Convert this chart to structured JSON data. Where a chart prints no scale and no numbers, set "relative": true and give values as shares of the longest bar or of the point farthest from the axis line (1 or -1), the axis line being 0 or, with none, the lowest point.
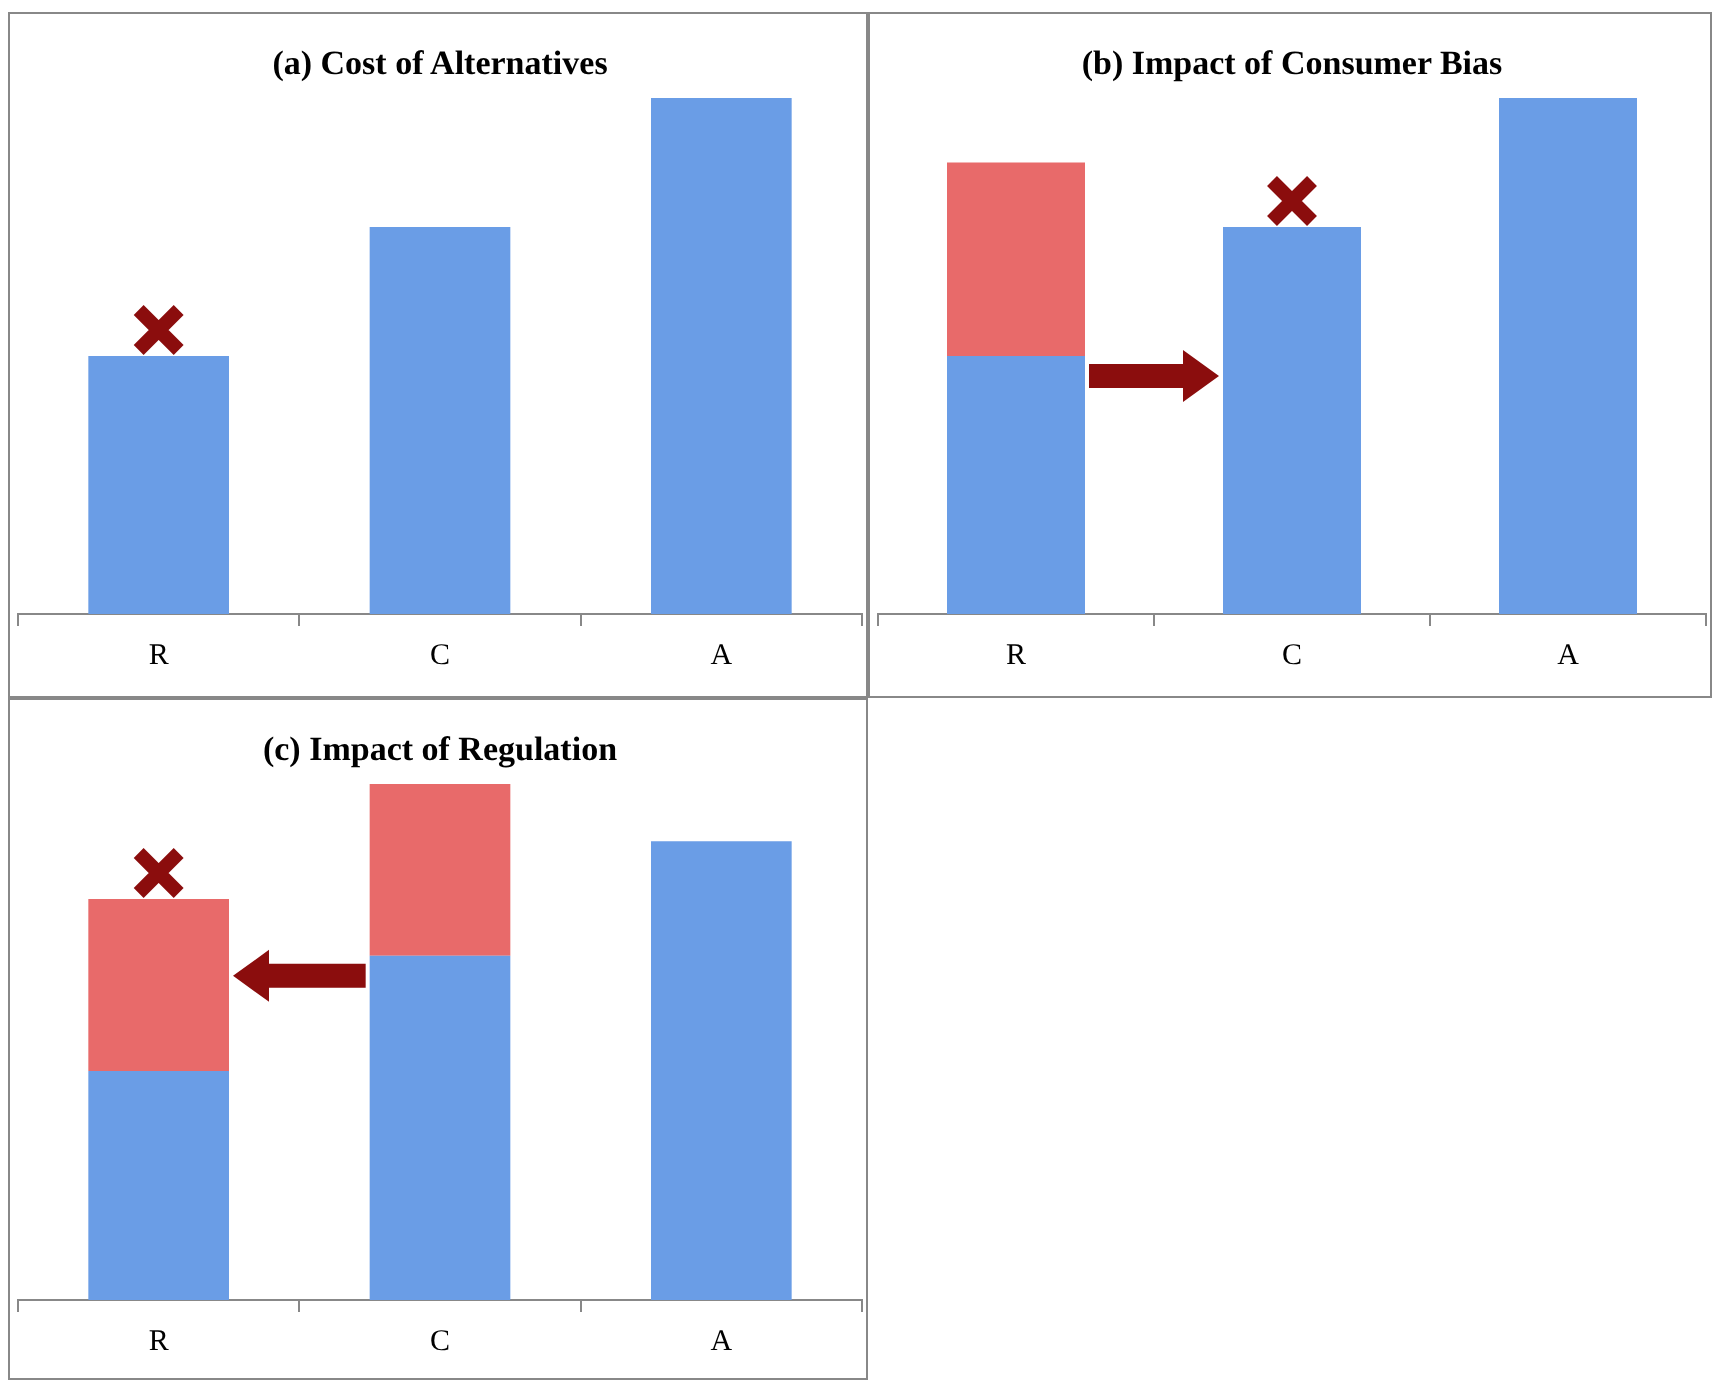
{
  "chart_data": [
    {
      "type": "bar",
      "title": "(a) Cost of Alternatives",
      "categories": [
        "R",
        "C",
        "A"
      ],
      "relative": true,
      "stacked": true,
      "legend": false,
      "grid": false,
      "series": [
        {
          "color": "#6a9de6",
          "values": [
            0.5,
            0.75,
            1
          ]
        }
      ]
    },
    {
      "type": "bar",
      "title": "(b) Impact of Consumer Bias",
      "categories": [
        "R",
        "C",
        "A"
      ],
      "relative": true,
      "stacked": true,
      "legend": false,
      "grid": false,
      "series": [
        {
          "color": "#6a9de6",
          "values": [
            0.5,
            0.75,
            1
          ]
        },
        {
          "color": "#e86a6a",
          "values": [
            0.375,
            null,
            null
          ]
        }
      ]
    },
    {
      "type": "bar",
      "title": "(c) Impact of Regulation",
      "categories": [
        "R",
        "C",
        "A"
      ],
      "relative": true,
      "stacked": true,
      "legend": false,
      "grid": false,
      "series": [
        {
          "color": "#6a9de6",
          "values": [
            0.444,
            0.667,
            0.889
          ]
        },
        {
          "color": "#e86a6a",
          "values": [
            0.333,
            0.333,
            null
          ]
        }
      ]
    }
  ]
}
